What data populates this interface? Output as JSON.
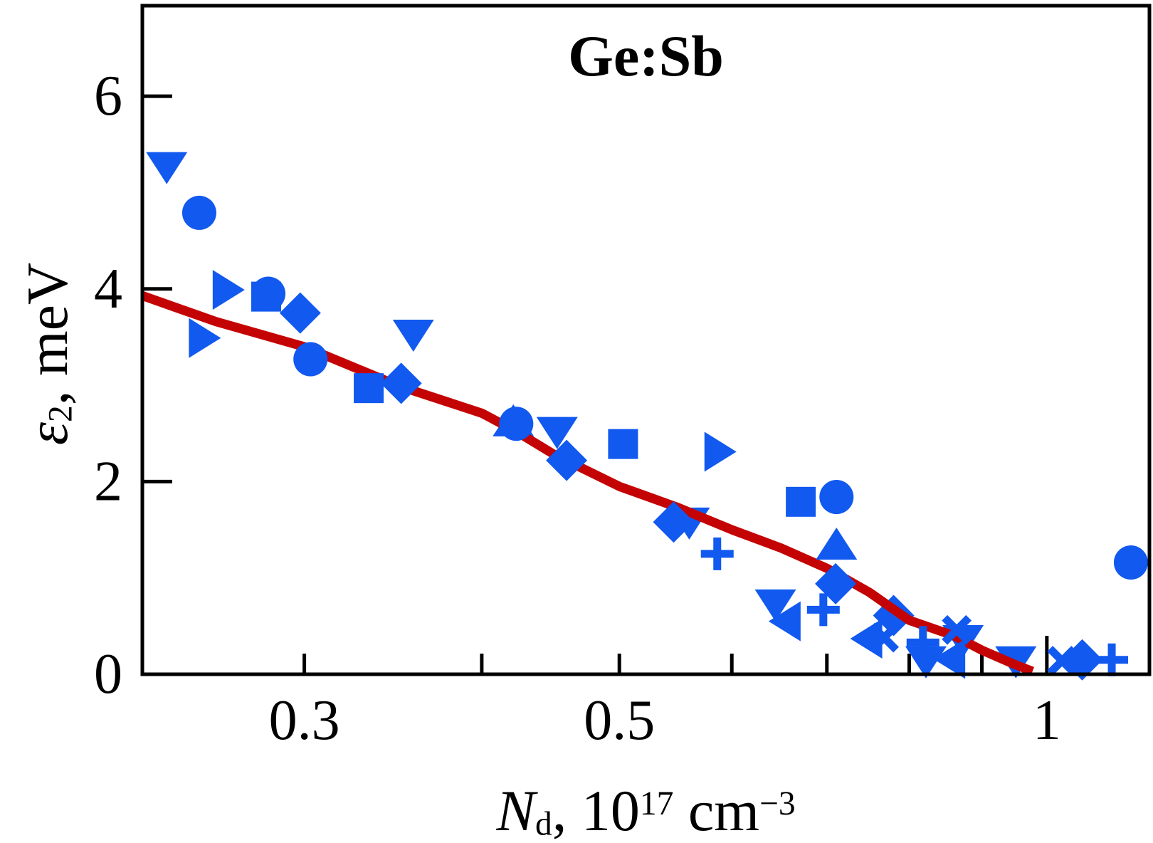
{
  "chart_data": {
    "type": "scatter",
    "title": "Ge:Sb",
    "xlabel_parts": {
      "symbol": "N",
      "sub": "d",
      "mid": ", 10",
      "exp": "17",
      "unit": " cm",
      "unit_exp": "−3"
    },
    "ylabel_parts": {
      "symbol": "ε",
      "sub": "2",
      "rest": ", meV"
    },
    "x_axis": {
      "scale": "log",
      "min": 0.2307,
      "max": 1.181,
      "ticks": [
        {
          "v": 0.3,
          "label": "0.3"
        },
        {
          "v": 0.4
        },
        {
          "v": 0.5,
          "label": "0.5"
        },
        {
          "v": 0.6
        },
        {
          "v": 0.7
        },
        {
          "v": 0.8
        },
        {
          "v": 0.9
        },
        {
          "v": 1.0,
          "label": "1",
          "major": true
        }
      ]
    },
    "y_axis": {
      "scale": "linear",
      "min": 0,
      "max": 6.94,
      "ticks": [
        {
          "v": 0,
          "label": "0"
        },
        {
          "v": 2,
          "label": "2"
        },
        {
          "v": 4,
          "label": "4"
        },
        {
          "v": 6,
          "label": "6"
        }
      ]
    },
    "series": [
      {
        "marker": "triangle-down",
        "points": [
          [
            0.24,
            5.28
          ],
          [
            0.358,
            3.54
          ],
          [
            0.452,
            2.53
          ],
          [
            0.644,
            0.74
          ],
          [
            0.822,
            0.15
          ]
        ],
        "points_behind": [
          [
            0.56,
            1.59
          ],
          [
            0.873,
            0.37
          ],
          [
            0.951,
            0.15
          ]
        ]
      },
      {
        "marker": "triangle-up",
        "points": [
          [
            0.711,
            1.33
          ]
        ],
        "points_behind": [
          [
            0.421,
            2.61
          ]
        ]
      },
      {
        "marker": "triangle-right",
        "points": [
          [
            0.264,
            3.99
          ],
          [
            0.254,
            3.49
          ],
          [
            0.586,
            2.31
          ]
        ],
        "points_behind": []
      },
      {
        "marker": "triangle-left",
        "points": [
          [
            0.657,
            0.55
          ],
          [
            0.75,
            0.37
          ],
          [
            0.858,
            0.16
          ]
        ],
        "points_behind": []
      },
      {
        "marker": "circle",
        "points": [
          [
            0.253,
            4.79
          ],
          [
            0.283,
            3.95
          ],
          [
            0.303,
            3.27
          ],
          [
            0.423,
            2.6
          ],
          [
            0.711,
            1.84
          ],
          [
            1.146,
            1.16
          ]
        ],
        "points_behind": []
      },
      {
        "marker": "diamond",
        "points": [
          [
            0.298,
            3.75
          ],
          [
            0.351,
            3.02
          ],
          [
            0.459,
            2.22
          ],
          [
            0.546,
            1.58
          ],
          [
            0.71,
            0.94
          ],
          [
            1.059,
            0.15
          ]
        ],
        "points_behind": [
          [
            0.78,
            0.61
          ]
        ]
      },
      {
        "marker": "square",
        "points": [
          [
            0.333,
            2.97
          ],
          [
            0.503,
            2.39
          ],
          [
            0.671,
            1.79
          ]
        ],
        "points_behind": [
          [
            0.282,
            3.92
          ]
        ]
      },
      {
        "marker": "plus",
        "points": [
          [
            0.586,
            1.25
          ],
          [
            0.696,
            0.67
          ],
          [
            0.818,
            0.33
          ],
          [
            1.111,
            0.15
          ]
        ],
        "points_behind": []
      },
      {
        "marker": "cross",
        "points": [
          [
            0.768,
            0.38
          ],
          [
            0.864,
            0.46
          ],
          [
            1.025,
            0.14
          ]
        ],
        "points_behind": []
      }
    ],
    "fit_line": {
      "points": [
        [
          0.2307,
          3.93
        ],
        [
          0.26,
          3.66
        ],
        [
          0.3,
          3.4
        ],
        [
          0.35,
          2.99
        ],
        [
          0.4,
          2.71
        ],
        [
          0.423,
          2.52
        ],
        [
          0.45,
          2.28
        ],
        [
          0.5,
          1.95
        ],
        [
          0.55,
          1.73
        ],
        [
          0.6,
          1.5
        ],
        [
          0.65,
          1.31
        ],
        [
          0.7,
          1.1
        ],
        [
          0.75,
          0.85
        ],
        [
          0.8,
          0.56
        ],
        [
          0.86,
          0.4
        ],
        [
          0.9,
          0.25
        ],
        [
          0.95,
          0.1
        ],
        [
          0.977,
          0.03
        ]
      ]
    },
    "colors": {
      "marker": "#1159ef",
      "fit_line": "#c40404",
      "axis": "#000000",
      "background": "#ffffff"
    }
  }
}
